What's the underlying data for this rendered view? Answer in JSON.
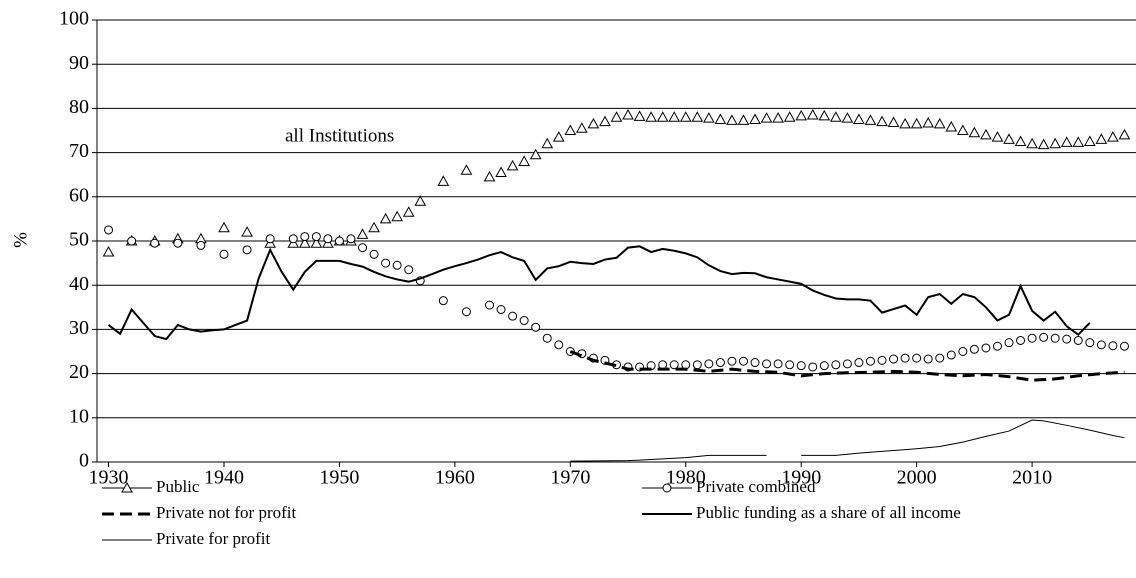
{
  "chart_data": {
    "type": "line",
    "y_label": "%",
    "annotation": "all Institutions",
    "xlim": [
      1929,
      2019
    ],
    "xticks": [
      1930,
      1940,
      1950,
      1960,
      1970,
      1980,
      1990,
      2000,
      2010
    ],
    "ylim": [
      0,
      100
    ],
    "yticks": [
      0,
      10,
      20,
      30,
      40,
      50,
      60,
      70,
      80,
      90,
      100
    ],
    "grid": true,
    "series": [
      {
        "name": "Public",
        "color": "#000000",
        "style": "triangle",
        "x": [
          1930,
          1932,
          1934,
          1936,
          1938,
          1940,
          1942,
          1944,
          1946,
          1947,
          1948,
          1949,
          1950,
          1951,
          1952,
          1953,
          1954,
          1955,
          1956,
          1957,
          1959,
          1961,
          1963,
          1964,
          1965,
          1966,
          1967,
          1968,
          1969,
          1970,
          1971,
          1972,
          1973,
          1974,
          1975,
          1976,
          1977,
          1978,
          1979,
          1980,
          1981,
          1982,
          1983,
          1984,
          1985,
          1986,
          1987,
          1988,
          1989,
          1990,
          1991,
          1992,
          1993,
          1994,
          1995,
          1996,
          1997,
          1998,
          1999,
          2000,
          2001,
          2002,
          2003,
          2004,
          2005,
          2006,
          2007,
          2008,
          2009,
          2010,
          2011,
          2012,
          2013,
          2014,
          2015,
          2016,
          2017,
          2018
        ],
        "values": [
          47.5,
          50,
          50,
          50.5,
          50.5,
          53,
          52,
          49.5,
          49.5,
          49.5,
          49.5,
          49.5,
          50,
          50,
          51.5,
          53,
          55,
          55.5,
          56.5,
          59,
          63.5,
          66,
          64.5,
          65.5,
          67,
          68,
          69.5,
          72,
          73.5,
          75,
          75.5,
          76.5,
          77,
          78,
          78.5,
          78.2,
          78,
          78,
          78,
          78,
          78,
          77.8,
          77.5,
          77.3,
          77.3,
          77.5,
          77.8,
          77.8,
          78,
          78.3,
          78.5,
          78.3,
          78,
          77.8,
          77.5,
          77.3,
          77,
          76.8,
          76.5,
          76.5,
          76.7,
          76.5,
          75.8,
          75,
          74.5,
          74,
          73.5,
          73,
          72.5,
          72,
          71.8,
          72,
          72.3,
          72.3,
          72.5,
          73,
          73.5,
          74
        ]
      },
      {
        "name": "Private combined",
        "color": "#000000",
        "style": "circle",
        "x": [
          1930,
          1932,
          1934,
          1936,
          1938,
          1940,
          1942,
          1944,
          1946,
          1947,
          1948,
          1949,
          1950,
          1951,
          1952,
          1953,
          1954,
          1955,
          1956,
          1957,
          1959,
          1961,
          1963,
          1964,
          1965,
          1966,
          1967,
          1968,
          1969,
          1970,
          1971,
          1972,
          1973,
          1974,
          1975,
          1976,
          1977,
          1978,
          1979,
          1980,
          1981,
          1982,
          1983,
          1984,
          1985,
          1986,
          1987,
          1988,
          1989,
          1990,
          1991,
          1992,
          1993,
          1994,
          1995,
          1996,
          1997,
          1998,
          1999,
          2000,
          2001,
          2002,
          2003,
          2004,
          2005,
          2006,
          2007,
          2008,
          2009,
          2010,
          2011,
          2012,
          2013,
          2014,
          2015,
          2016,
          2017,
          2018
        ],
        "values": [
          52.5,
          50,
          49.5,
          49.5,
          49,
          47,
          48,
          50.5,
          50.5,
          51,
          51,
          50.5,
          50,
          50.5,
          48.5,
          47,
          45,
          44.5,
          43.5,
          41,
          36.5,
          34,
          35.5,
          34.5,
          33,
          32,
          30.5,
          28,
          26.5,
          25,
          24.5,
          23.5,
          23,
          22,
          21.5,
          21.5,
          21.8,
          22,
          22,
          22,
          22,
          22.2,
          22.5,
          22.8,
          22.8,
          22.5,
          22.2,
          22.2,
          22,
          21.8,
          21.5,
          21.8,
          22,
          22.2,
          22.5,
          22.8,
          23,
          23.3,
          23.5,
          23.5,
          23.3,
          23.5,
          24.2,
          25,
          25.5,
          25.8,
          26.2,
          27,
          27.5,
          28,
          28.2,
          28,
          27.8,
          27.5,
          27,
          26.5,
          26.3,
          26.2
        ]
      },
      {
        "name": "Private not for profit",
        "color": "#000000",
        "style": "dash",
        "x": [
          1970,
          1972,
          1974,
          1975,
          1978,
          1980,
          1982,
          1984,
          1986,
          1988,
          1990,
          1992,
          1994,
          1996,
          1998,
          2000,
          2002,
          2004,
          2006,
          2008,
          2010,
          2012,
          2014,
          2016,
          2018
        ],
        "values": [
          25,
          23,
          21.8,
          21,
          21,
          21,
          20.5,
          21,
          20.5,
          20.3,
          19.5,
          20,
          20.2,
          20.3,
          20.5,
          20.3,
          19.8,
          19.5,
          19.8,
          19.3,
          18.5,
          18.8,
          19.5,
          20,
          20.3
        ]
      },
      {
        "name": "Public funding as a share of all income",
        "color": "#000000",
        "style": "solid",
        "x": [
          1930,
          1931,
          1932,
          1933,
          1934,
          1935,
          1936,
          1937,
          1938,
          1939,
          1940,
          1941,
          1942,
          1943,
          1944,
          1945,
          1946,
          1947,
          1948,
          1949,
          1950,
          1951,
          1952,
          1953,
          1954,
          1955,
          1956,
          1957,
          1958,
          1959,
          1960,
          1961,
          1962,
          1963,
          1964,
          1965,
          1966,
          1967,
          1968,
          1969,
          1970,
          1971,
          1972,
          1973,
          1974,
          1975,
          1976,
          1977,
          1978,
          1979,
          1980,
          1981,
          1982,
          1983,
          1984,
          1985,
          1986,
          1987,
          1988,
          1989,
          1990,
          1991,
          1992,
          1993,
          1994,
          1995,
          1996,
          1997,
          1998,
          1999,
          2000,
          2001,
          2002,
          2003,
          2004,
          2005,
          2006,
          2007,
          2008,
          2009,
          2010,
          2011,
          2012,
          2013,
          2014,
          2015
        ],
        "values": [
          31,
          29,
          34.5,
          31.5,
          28.5,
          27.8,
          31,
          30,
          29.5,
          29.8,
          30,
          31,
          32,
          41.5,
          48,
          43,
          39,
          43,
          45.5,
          45.5,
          45.5,
          44.8,
          44.2,
          43,
          42,
          41.3,
          40.8,
          41.5,
          42.5,
          43.5,
          44.3,
          45,
          45.8,
          46.8,
          47.5,
          46.3,
          45.5,
          41.2,
          43.8,
          44.3,
          45.3,
          45,
          44.8,
          45.8,
          46.2,
          48.5,
          48.8,
          47.5,
          48.2,
          47.8,
          47.2,
          46.3,
          44.5,
          43.2,
          42.5,
          42.8,
          42.7,
          41.8,
          41.3,
          40.8,
          40.3,
          38.8,
          37.8,
          37,
          36.8,
          36.8,
          36.5,
          33.8,
          34.6,
          35.4,
          33.3,
          37.3,
          38,
          35.8,
          38,
          37.3,
          35,
          32,
          33.3,
          39.8,
          34.2,
          32,
          34,
          30.7,
          28.8,
          31.5
        ]
      },
      {
        "name": "Private for profit",
        "color": "#000000",
        "style": "thin",
        "x": [
          1970,
          1975,
          1978,
          1980,
          1982,
          1985,
          1987,
          1988,
          1990,
          1993,
          1995,
          2000,
          2002,
          2004,
          2006,
          2008,
          2010,
          2011,
          2013,
          2015,
          2017,
          2018
        ],
        "values": [
          0.2,
          0.3,
          0.7,
          1,
          1.5,
          1.5,
          1.5,
          null,
          1.5,
          1.5,
          2,
          3,
          3.5,
          4.5,
          5.8,
          7,
          9.5,
          9.3,
          8.3,
          7.2,
          6,
          5.5
        ]
      }
    ]
  }
}
